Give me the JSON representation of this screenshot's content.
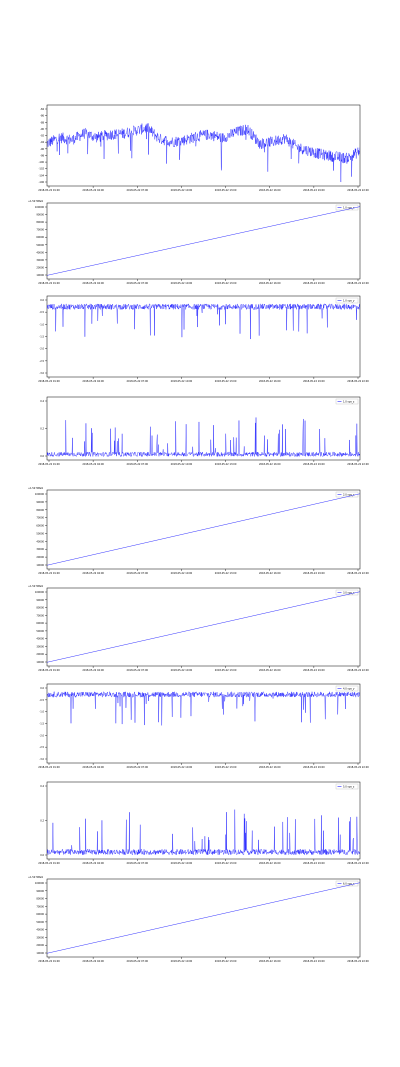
{
  "colors": {
    "series": "#0000ff",
    "axis": "#000000",
    "background": "#ffffff"
  },
  "chart_data": [
    {
      "type": "line",
      "kind": "noisy",
      "legend": null,
      "offset_text": "",
      "x_ticks": [
        "2018-05-22 01:00",
        "2018-05-22 04:00",
        "2018-05-22 07:00",
        "2018-05-22 10:00",
        "2018-05-22 13:00",
        "2018-05-22 16:00",
        "2018-05-22 19:00",
        "2018-05-22 22:00"
      ],
      "y_ticks": [
        "-84",
        "-86",
        "-88",
        "-90",
        "-92",
        "-94",
        "-96",
        "-98",
        "-100",
        "-102",
        "-104",
        "-106"
      ],
      "ylim": [
        -106.0,
        -84.0
      ],
      "baseline_points": [
        [
          0,
          -94.5
        ],
        [
          0.04,
          -92.8
        ],
        [
          0.08,
          -93.5
        ],
        [
          0.12,
          -91.7
        ],
        [
          0.16,
          -92.8
        ],
        [
          0.2,
          -92.0
        ],
        [
          0.24,
          -91.8
        ],
        [
          0.28,
          -91.0
        ],
        [
          0.32,
          -90.2
        ],
        [
          0.36,
          -93.2
        ],
        [
          0.4,
          -94.0
        ],
        [
          0.44,
          -93.5
        ],
        [
          0.48,
          -92.5
        ],
        [
          0.52,
          -92.0
        ],
        [
          0.56,
          -93.0
        ],
        [
          0.6,
          -91.5
        ],
        [
          0.64,
          -90.5
        ],
        [
          0.68,
          -94.5
        ],
        [
          0.72,
          -94.0
        ],
        [
          0.76,
          -93.0
        ],
        [
          0.8,
          -95.5
        ],
        [
          0.84,
          -96.5
        ],
        [
          0.88,
          -97.5
        ],
        [
          0.92,
          -98.0
        ],
        [
          0.96,
          -98.5
        ],
        [
          1,
          -96.5
        ]
      ],
      "noise_amplitude": 1.5,
      "spike_depth": 5.0
    },
    {
      "type": "line",
      "kind": "linear",
      "legend": "1.0 ops_x",
      "offset_text": "+1.52708e9",
      "x_ticks": [
        "2018-05-22 01:00",
        "2018-05-22 04:00",
        "2018-05-22 07:00",
        "2018-05-22 10:00",
        "2018-05-22 13:00",
        "2018-05-22 16:00",
        "2018-05-22 19:00",
        "2018-05-22 22:00"
      ],
      "y_ticks": [
        "100000",
        "90000",
        "80000",
        "70000",
        "60000",
        "50000",
        "40000",
        "30000",
        "20000",
        "10000"
      ],
      "ylim": [
        0,
        105000
      ],
      "baseline_points": [
        [
          0,
          5000
        ],
        [
          1,
          100000
        ]
      ]
    },
    {
      "type": "line",
      "kind": "noisy",
      "legend": "1.0 ops_y",
      "offset_text": "",
      "x_ticks": [
        "2018-05-22 01:00",
        "2018-05-22 04:00",
        "2018-05-22 07:00",
        "2018-05-22 10:00",
        "2018-05-22 13:00",
        "2018-05-22 16:00",
        "2018-05-22 19:00",
        "2018-05-22 22:00"
      ],
      "y_ticks": [
        "0.0",
        "-0.5",
        "-1.0",
        "-1.5",
        "-2.0",
        "-2.5",
        "-3.0"
      ],
      "ylim": [
        -3.0,
        0.4
      ],
      "baseline_points": [
        [
          0,
          -0.05
        ],
        [
          1,
          -0.05
        ]
      ],
      "noise_amplitude": 0.12,
      "spike_depth": 0.8
    },
    {
      "type": "line",
      "kind": "noisy",
      "legend": "1.0 ops_z",
      "offset_text": "",
      "x_ticks": [
        "2018-05-22 01:00",
        "2018-05-22 04:00",
        "2018-05-22 07:00",
        "2018-05-22 10:00",
        "2018-05-22 13:00",
        "2018-05-22 16:00",
        "2018-05-22 19:00",
        "2018-05-22 22:00"
      ],
      "y_ticks": [
        "0.4",
        "0.2",
        "0.0"
      ],
      "ylim": [
        -0.05,
        0.5
      ],
      "baseline_points": [
        [
          0,
          0.0
        ],
        [
          1,
          0.0
        ]
      ],
      "noise_amplitude": 0.02,
      "spike_depth": -0.18
    },
    {
      "type": "line",
      "kind": "linear",
      "legend": "2.0 ops_x",
      "offset_text": "+1.52708e9",
      "x_ticks": [
        "2018-05-22 01:00",
        "2018-05-22 04:00",
        "2018-05-22 07:00",
        "2018-05-22 10:00",
        "2018-05-22 13:00",
        "2018-05-22 16:00",
        "2018-05-22 19:00",
        "2018-05-22 22:00"
      ],
      "y_ticks": [
        "100000",
        "90000",
        "80000",
        "70000",
        "60000",
        "50000",
        "40000",
        "30000",
        "20000",
        "10000"
      ],
      "ylim": [
        0,
        105000
      ],
      "baseline_points": [
        [
          0,
          5000
        ],
        [
          1,
          100000
        ]
      ]
    },
    {
      "type": "line",
      "kind": "linear",
      "legend": "3.0 ops_x",
      "offset_text": "+1.52708e9",
      "x_ticks": [
        "2018-05-22 01:00",
        "2018-05-22 04:00",
        "2018-05-22 07:00",
        "2018-05-22 10:00",
        "2018-05-22 13:00",
        "2018-05-22 16:00",
        "2018-05-22 19:00",
        "2018-05-22 22:00"
      ],
      "y_ticks": [
        "100000",
        "90000",
        "80000",
        "70000",
        "60000",
        "50000",
        "40000",
        "30000",
        "20000",
        "10000"
      ],
      "ylim": [
        0,
        105000
      ],
      "baseline_points": [
        [
          0,
          5000
        ],
        [
          1,
          100000
        ]
      ]
    },
    {
      "type": "line",
      "kind": "noisy",
      "legend": "4.0 ops_y",
      "offset_text": "",
      "x_ticks": [
        "2018-05-22 01:00",
        "2018-05-22 04:00",
        "2018-05-22 07:00",
        "2018-05-22 10:00",
        "2018-05-22 13:00",
        "2018-05-22 16:00",
        "2018-05-22 19:00",
        "2018-05-22 22:00"
      ],
      "y_ticks": [
        "0.0",
        "-0.5",
        "-1.0",
        "-1.5",
        "-2.0",
        "-2.5",
        "-3.0"
      ],
      "ylim": [
        -3.0,
        0.4
      ],
      "baseline_points": [
        [
          0,
          -0.05
        ],
        [
          1,
          -0.05
        ]
      ],
      "noise_amplitude": 0.12,
      "spike_depth": 0.8
    },
    {
      "type": "line",
      "kind": "noisy",
      "legend": "5.0 ops_z",
      "offset_text": "",
      "x_ticks": [
        "2018-05-22 01:00",
        "2018-05-22 04:00",
        "2018-05-22 07:00",
        "2018-05-22 10:00",
        "2018-05-22 13:00",
        "2018-05-22 16:00",
        "2018-05-22 19:00",
        "2018-05-22 22:00"
      ],
      "y_ticks": [
        "0.4",
        "0.2",
        "0.0"
      ],
      "ylim": [
        -0.05,
        0.5
      ],
      "baseline_points": [
        [
          0,
          0.0
        ],
        [
          1,
          0.0
        ]
      ],
      "noise_amplitude": 0.02,
      "spike_depth": -0.18
    },
    {
      "type": "line",
      "kind": "linear",
      "legend": "6.0 ops_x",
      "offset_text": "+1.52708e9",
      "x_ticks": [
        "2018-05-22 01:00",
        "2018-05-22 04:00",
        "2018-05-22 07:00",
        "2018-05-22 10:00",
        "2018-05-22 13:00",
        "2018-05-22 16:00",
        "2018-05-22 19:00",
        "2018-05-22 22:00"
      ],
      "y_ticks": [
        "100000",
        "90000",
        "80000",
        "70000",
        "60000",
        "50000",
        "40000",
        "30000",
        "20000",
        "10000"
      ],
      "ylim": [
        0,
        105000
      ],
      "baseline_points": [
        [
          0,
          5000
        ],
        [
          1,
          100000
        ]
      ]
    }
  ]
}
